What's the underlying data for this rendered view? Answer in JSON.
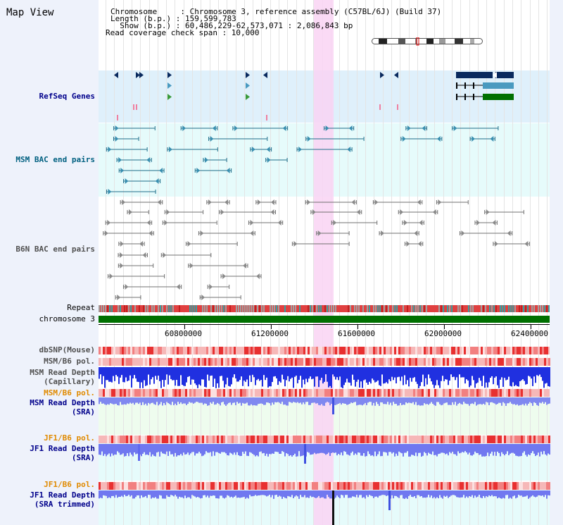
{
  "header": {
    "map_title": "Map View",
    "chromosome_line": "Chromosome     : Chromosome 3, reference assembly (C57BL/6J) (Build 37)",
    "length_line": "Length (b.p.) : 159,599,783",
    "show_line": "  Show (b.p.) : 60,486,229-62,573,071 : 2,086,843 bp",
    "coverage_line": "Read coverage check span : 10,000"
  },
  "tracks": {
    "refseq": "RefSeq Genes",
    "msm_bac": "MSM BAC end pairs",
    "b6n_bac": "B6N BAC end pairs",
    "repeat": "Repeat",
    "chromosome": "chromosome 3",
    "dbsnp": "dbSNP(Mouse)",
    "msm_b6_pol": "MSM/B6 pol.",
    "msm_read_depth_cap_1": "MSM Read Depth",
    "msm_read_depth_cap_2": "(Capillary)",
    "msm_b6_pol_2": "MSM/B6 pol.",
    "msm_read_depth_sra_1": "MSM Read Depth",
    "msm_read_depth_sra_2": "(SRA)",
    "jf1_b6_pol": "JF1/B6 pol.",
    "jf1_read_depth_1": "JF1 Read Depth",
    "jf1_read_depth_2": "(SRA)",
    "jf1_b6_pol_2": "JF1/B6 pol.",
    "jf1_trim_1": "JF1 Read Depth",
    "jf1_trim_2": "(SRA trimmed)"
  },
  "axis": {
    "ticks": [
      "60800000",
      "61200000",
      "61600000",
      "62000000",
      "62400000"
    ]
  },
  "colors": {
    "refseq_bg": "#dff0fb",
    "msm_bac_bg": "#e6fbfb",
    "highlight": "#f9d4f3",
    "chromosome_bar": "#007000",
    "depth_blue": "#1f2ee0",
    "depth_light": "#7b80f5"
  }
}
